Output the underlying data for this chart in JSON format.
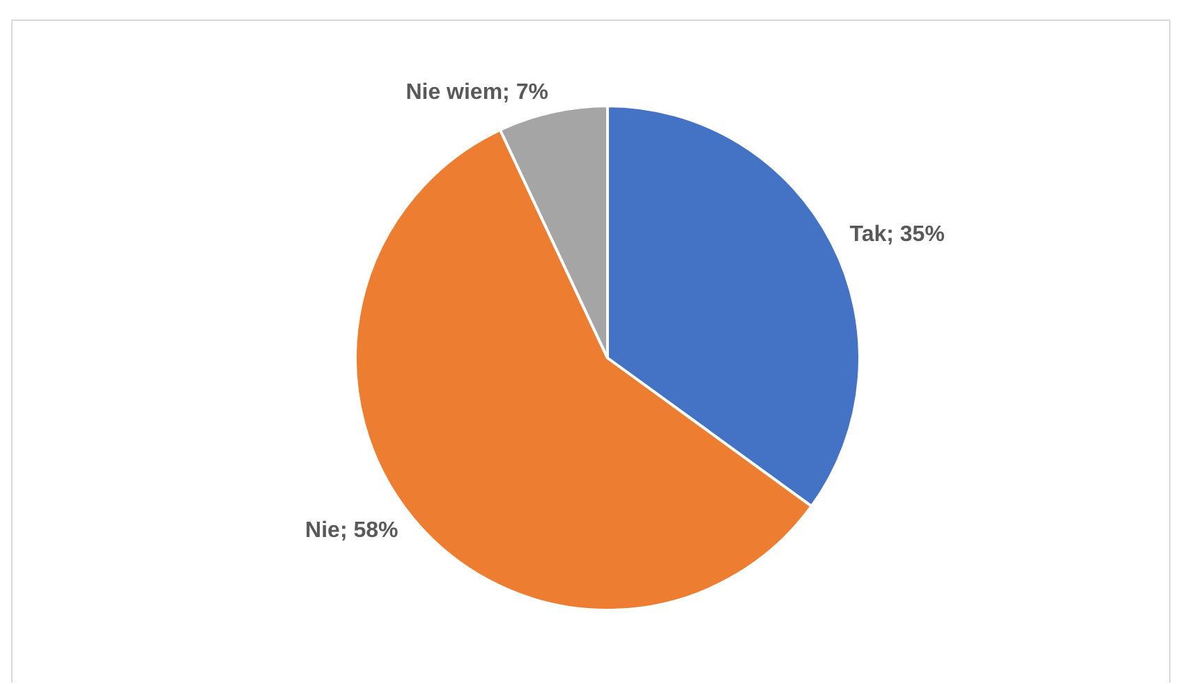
{
  "chart_data": {
    "type": "pie",
    "categories": [
      "Tak",
      "Nie",
      "Nie wiem"
    ],
    "values": [
      35,
      58,
      7
    ],
    "colors": [
      "#4472c4",
      "#ed7d31",
      "#a5a5a5"
    ],
    "value_labels": [
      "35%",
      "58%",
      "7%"
    ]
  }
}
